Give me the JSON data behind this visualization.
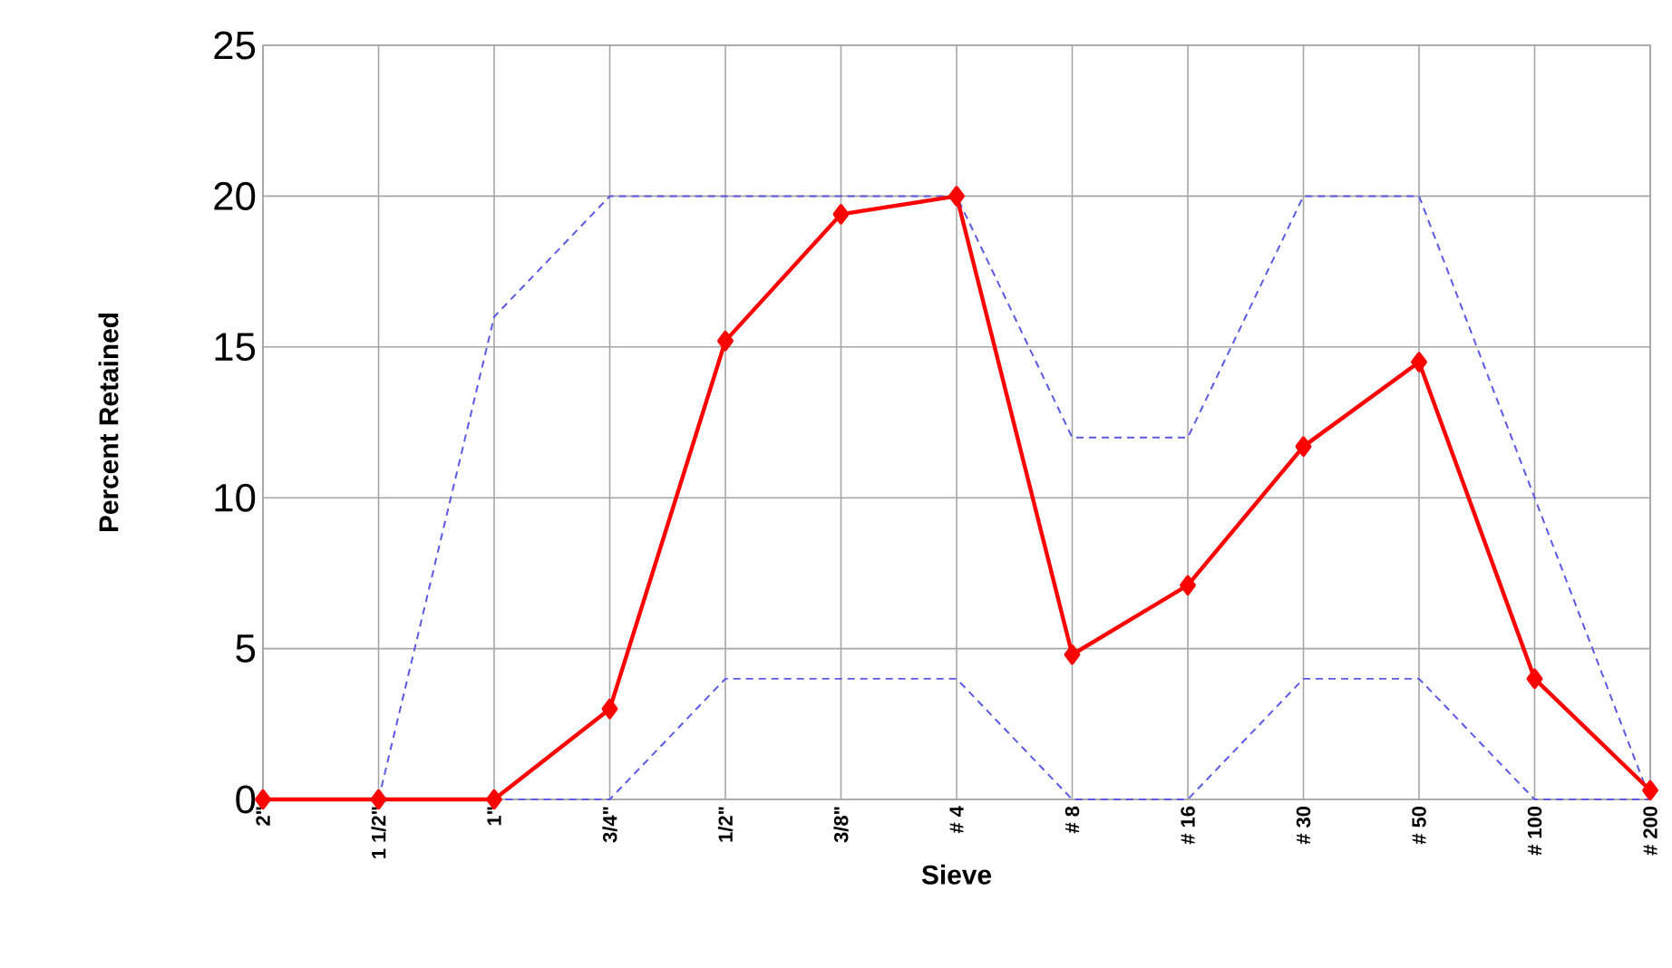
{
  "chart_data": {
    "type": "line",
    "xlabel": "Sieve",
    "ylabel": "Percent Retained",
    "categories": [
      "2\"",
      "1 1/2\"",
      "1\"",
      "3/4\"",
      "1/2\"",
      "3/8\"",
      "# 4",
      "# 8",
      "# 16",
      "# 30",
      "# 50",
      "# 100",
      "# 200"
    ],
    "series": [
      {
        "color": "#5a5ae6",
        "line_style": "dashed",
        "marker": "none",
        "values": [
          null,
          0,
          16,
          20,
          20,
          20,
          20,
          12,
          12,
          20,
          20,
          10,
          0
        ]
      },
      {
        "color": "#5a5ae6",
        "line_style": "dashed",
        "marker": "none",
        "values": [
          null,
          0,
          0,
          0,
          4,
          4,
          4,
          0,
          0,
          4,
          4,
          0,
          0
        ]
      },
      {
        "color": "#ff0000",
        "line_style": "solid",
        "marker": "diamond",
        "values": [
          0,
          0,
          0,
          3.0,
          15.2,
          19.4,
          20,
          4.8,
          7.1,
          11.7,
          14.5,
          4.0,
          0.3
        ]
      }
    ],
    "ylim": [
      0,
      25
    ],
    "yticks": [
      0,
      5,
      10,
      15,
      20,
      25
    ],
    "grid": true
  }
}
